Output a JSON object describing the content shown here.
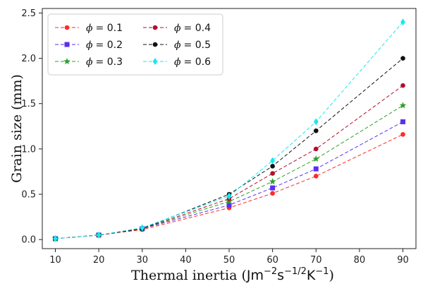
{
  "chart_data": {
    "type": "line",
    "title": "",
    "xlabel": "Thermal inertia (Jm⁻²s⁻¹ᐟ²K⁻¹)",
    "xlabel_parts": {
      "base": "Thermal inertia (",
      "unit": "Jm",
      "sup1": "−2",
      "s": "s",
      "sup2": "−1/2",
      "k": "K",
      "sup3": "−1",
      "close": ")"
    },
    "ylabel": "Grain size (mm)",
    "xlim": [
      7,
      93
    ],
    "ylim": [
      -0.1,
      2.55
    ],
    "xticks": [
      10,
      20,
      30,
      40,
      50,
      60,
      70,
      80,
      90
    ],
    "yticks": [
      0.0,
      0.5,
      1.0,
      1.5,
      2.0,
      2.5
    ],
    "ytick_labels": [
      "0.0",
      "0.5",
      "1.0",
      "1.5",
      "2.0",
      "2.5"
    ],
    "x": [
      10,
      20,
      30,
      50,
      60,
      70,
      90
    ],
    "legend_position": "top-left",
    "grid": false,
    "series": [
      {
        "name": "ϕ = 0.1",
        "symbol": "ϕ",
        "value": "= 0.1",
        "color": "#ff2a2a",
        "marker": "circle",
        "values": [
          0.01,
          0.05,
          0.11,
          0.35,
          0.51,
          0.7,
          1.16
        ]
      },
      {
        "name": "ϕ = 0.2",
        "symbol": "ϕ",
        "value": "= 0.2",
        "color": "#5a2ff0",
        "marker": "square",
        "values": [
          0.01,
          0.05,
          0.12,
          0.38,
          0.57,
          0.78,
          1.3
        ]
      },
      {
        "name": "ϕ = 0.3",
        "symbol": "ϕ",
        "value": "= 0.3",
        "color": "#2ca02c",
        "marker": "star",
        "values": [
          0.01,
          0.05,
          0.12,
          0.42,
          0.64,
          0.89,
          1.48
        ]
      },
      {
        "name": "ϕ = 0.4",
        "symbol": "ϕ",
        "value": "= 0.4",
        "color": "#b0102a",
        "marker": "circle",
        "values": [
          0.01,
          0.05,
          0.12,
          0.45,
          0.73,
          1.0,
          1.7
        ]
      },
      {
        "name": "ϕ = 0.5",
        "symbol": "ϕ",
        "value": "= 0.5",
        "color": "#111111",
        "marker": "circle",
        "values": [
          0.01,
          0.05,
          0.12,
          0.5,
          0.81,
          1.2,
          2.0
        ]
      },
      {
        "name": "ϕ = 0.6",
        "symbol": "ϕ",
        "value": "= 0.6",
        "color": "#18e8f0",
        "marker": "diamond",
        "values": [
          0.01,
          0.05,
          0.13,
          0.48,
          0.87,
          1.3,
          2.4
        ]
      }
    ]
  }
}
